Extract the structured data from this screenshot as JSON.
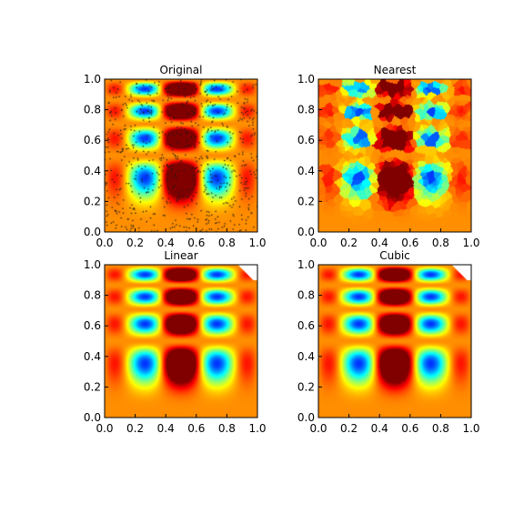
{
  "figure": {
    "background": "#ffffff",
    "colormap": "jet"
  },
  "chart_data": [
    {
      "type": "heatmap",
      "title": "Original",
      "method": "original",
      "xlim": [
        0,
        1
      ],
      "ylim": [
        0,
        1
      ],
      "x_ticks": [
        "0.0",
        "0.2",
        "0.4",
        "0.6",
        "0.8",
        "1.0"
      ],
      "y_ticks": [
        "0.0",
        "0.2",
        "0.4",
        "0.6",
        "0.8",
        "1.0"
      ],
      "scatter_overlay": true
    },
    {
      "type": "heatmap",
      "title": "Nearest",
      "method": "nearest",
      "xlim": [
        0,
        1
      ],
      "ylim": [
        0,
        1
      ],
      "x_ticks": [
        "0.0",
        "0.2",
        "0.4",
        "0.6",
        "0.8",
        "1.0"
      ],
      "y_ticks": [
        "0.0",
        "0.2",
        "0.4",
        "0.6",
        "0.8",
        "1.0"
      ]
    },
    {
      "type": "heatmap",
      "title": "Linear",
      "method": "linear",
      "xlim": [
        0,
        1
      ],
      "ylim": [
        0,
        1
      ],
      "x_ticks": [
        "0.0",
        "0.2",
        "0.4",
        "0.6",
        "0.8",
        "1.0"
      ],
      "y_ticks": [
        "0.0",
        "0.2",
        "0.4",
        "0.6",
        "0.8",
        "1.0"
      ],
      "missing_corner": "top-right"
    },
    {
      "type": "heatmap",
      "title": "Cubic",
      "method": "cubic",
      "xlim": [
        0,
        1
      ],
      "ylim": [
        0,
        1
      ],
      "x_ticks": [
        "0.0",
        "0.2",
        "0.4",
        "0.6",
        "0.8",
        "1.0"
      ],
      "y_ticks": [
        "0.0",
        "0.2",
        "0.4",
        "0.6",
        "0.8",
        "1.0"
      ],
      "missing_corner": "top-right"
    }
  ]
}
